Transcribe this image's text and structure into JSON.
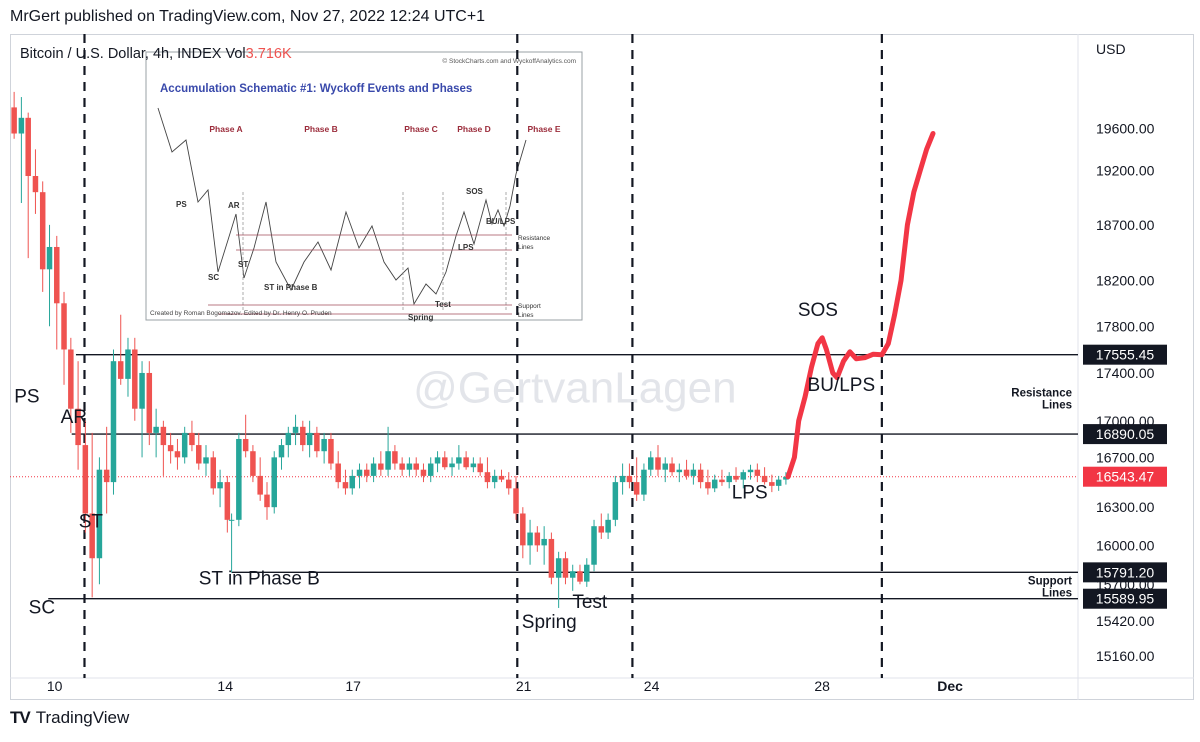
{
  "header": {
    "publish_line": "MrGert published on TradingView.com, Nov 27, 2022 12:24 UTC+1"
  },
  "footer": {
    "brand": "TradingView"
  },
  "colors": {
    "up": "#26a69a",
    "down": "#ef5350",
    "path": "#f23645",
    "axis_text": "#131722",
    "last_price_bg": "#f23645"
  },
  "chart_data": {
    "type": "candlestick",
    "symbol_line": "Bitcoin / U.S. Dollar, 4h, INDEX",
    "volume_label": "Vol",
    "volume_value": "3.716K",
    "currency": "USD",
    "watermark": "@GertvanLagen",
    "y_scale": "log",
    "ylim": [
      15000,
      20500
    ],
    "xlim": [
      9.0,
      34.0
    ],
    "x_tick_labels": [
      {
        "x": 10,
        "label": "10"
      },
      {
        "x": 14,
        "label": "14"
      },
      {
        "x": 17,
        "label": "17"
      },
      {
        "x": 21,
        "label": "21"
      },
      {
        "x": 24,
        "label": "24"
      },
      {
        "x": 28,
        "label": "28"
      },
      {
        "x": 31,
        "label": "Dec"
      }
    ],
    "y_ticks": [
      15160,
      15420,
      15700,
      16000,
      16300,
      16700,
      17000,
      17400,
      17800,
      18200,
      18700,
      19200,
      19600
    ],
    "y_tick_labels": [
      "15160.00",
      "15420.00",
      "15700.00",
      "16000.00",
      "16300.00",
      "16700.00",
      "17000.00",
      "17400.00",
      "17800.00",
      "18200.00",
      "18700.00",
      "19200.00",
      "19600.00"
    ],
    "price_lines": [
      {
        "value": 17555.45,
        "label": "17555.45",
        "x_start": 10.5
      },
      {
        "value": 16890.05,
        "label": "16890.05",
        "x_start": 10.4
      },
      {
        "value": 15791.2,
        "label": "15791.20",
        "x_start": 14.15
      },
      {
        "value": 15589.95,
        "label": "15589.95",
        "x_start": 9.85
      }
    ],
    "last_price": {
      "value": 16543.47,
      "label": "16543.47"
    },
    "phase_dividers_x": [
      10.7,
      20.85,
      23.55,
      29.4
    ],
    "candles": [
      {
        "x": 9.05,
        "o": 19800,
        "h": 19950,
        "l": 19500,
        "c": 19550
      },
      {
        "x": 9.22,
        "o": 19550,
        "h": 19900,
        "l": 18900,
        "c": 19700
      },
      {
        "x": 9.38,
        "o": 19700,
        "h": 19750,
        "l": 18400,
        "c": 19150
      },
      {
        "x": 9.55,
        "o": 19150,
        "h": 19400,
        "l": 18800,
        "c": 19000
      },
      {
        "x": 9.72,
        "o": 19000,
        "h": 19100,
        "l": 18100,
        "c": 18300
      },
      {
        "x": 9.88,
        "o": 18300,
        "h": 18700,
        "l": 17800,
        "c": 18500
      },
      {
        "x": 10.05,
        "o": 18500,
        "h": 18600,
        "l": 17600,
        "c": 18000
      },
      {
        "x": 10.22,
        "o": 18000,
        "h": 18100,
        "l": 17300,
        "c": 17600
      },
      {
        "x": 10.38,
        "o": 17600,
        "h": 17700,
        "l": 16900,
        "c": 17100
      },
      {
        "x": 10.55,
        "o": 17100,
        "h": 17500,
        "l": 16600,
        "c": 16800
      },
      {
        "x": 10.72,
        "o": 16800,
        "h": 17000,
        "l": 16100,
        "c": 16250
      },
      {
        "x": 10.88,
        "o": 16250,
        "h": 16900,
        "l": 15600,
        "c": 15900
      },
      {
        "x": 11.05,
        "o": 15900,
        "h": 16700,
        "l": 15700,
        "c": 16600
      },
      {
        "x": 11.22,
        "o": 16600,
        "h": 16950,
        "l": 16250,
        "c": 16500
      },
      {
        "x": 11.38,
        "o": 16500,
        "h": 17600,
        "l": 16400,
        "c": 17500
      },
      {
        "x": 11.55,
        "o": 17500,
        "h": 17900,
        "l": 17300,
        "c": 17350
      },
      {
        "x": 11.72,
        "o": 17350,
        "h": 17700,
        "l": 17200,
        "c": 17600
      },
      {
        "x": 11.88,
        "o": 17600,
        "h": 17700,
        "l": 17000,
        "c": 17100
      },
      {
        "x": 12.05,
        "o": 17100,
        "h": 17500,
        "l": 16700,
        "c": 17400
      },
      {
        "x": 12.22,
        "o": 17400,
        "h": 17500,
        "l": 16800,
        "c": 16900
      },
      {
        "x": 12.38,
        "o": 16900,
        "h": 17100,
        "l": 16700,
        "c": 16950
      },
      {
        "x": 12.55,
        "o": 16950,
        "h": 17000,
        "l": 16550,
        "c": 16800
      },
      {
        "x": 12.72,
        "o": 16800,
        "h": 16900,
        "l": 16650,
        "c": 16750
      },
      {
        "x": 12.88,
        "o": 16750,
        "h": 16850,
        "l": 16600,
        "c": 16700
      },
      {
        "x": 13.05,
        "o": 16700,
        "h": 16950,
        "l": 16650,
        "c": 16900
      },
      {
        "x": 13.22,
        "o": 16900,
        "h": 17000,
        "l": 16750,
        "c": 16800
      },
      {
        "x": 13.38,
        "o": 16800,
        "h": 16900,
        "l": 16600,
        "c": 16650
      },
      {
        "x": 13.55,
        "o": 16650,
        "h": 16800,
        "l": 16550,
        "c": 16700
      },
      {
        "x": 13.72,
        "o": 16700,
        "h": 16750,
        "l": 16400,
        "c": 16450
      },
      {
        "x": 13.88,
        "o": 16450,
        "h": 16600,
        "l": 16300,
        "c": 16500
      },
      {
        "x": 14.05,
        "o": 16500,
        "h": 16550,
        "l": 16100,
        "c": 16200
      },
      {
        "x": 14.15,
        "o": 16200,
        "h": 16250,
        "l": 15790,
        "c": 16200
      },
      {
        "x": 14.32,
        "o": 16200,
        "h": 16900,
        "l": 16150,
        "c": 16850
      },
      {
        "x": 14.48,
        "o": 16850,
        "h": 17050,
        "l": 16700,
        "c": 16750
      },
      {
        "x": 14.65,
        "o": 16750,
        "h": 16800,
        "l": 16500,
        "c": 16550
      },
      {
        "x": 14.82,
        "o": 16550,
        "h": 16700,
        "l": 16350,
        "c": 16400
      },
      {
        "x": 14.98,
        "o": 16400,
        "h": 16500,
        "l": 16200,
        "c": 16300
      },
      {
        "x": 15.15,
        "o": 16300,
        "h": 16750,
        "l": 16250,
        "c": 16700
      },
      {
        "x": 15.32,
        "o": 16700,
        "h": 16850,
        "l": 16600,
        "c": 16800
      },
      {
        "x": 15.48,
        "o": 16800,
        "h": 16950,
        "l": 16700,
        "c": 16900
      },
      {
        "x": 15.65,
        "o": 16900,
        "h": 17050,
        "l": 16800,
        "c": 16950
      },
      {
        "x": 15.82,
        "o": 16950,
        "h": 17000,
        "l": 16750,
        "c": 16800
      },
      {
        "x": 15.98,
        "o": 16800,
        "h": 17000,
        "l": 16700,
        "c": 16900
      },
      {
        "x": 16.15,
        "o": 16900,
        "h": 16950,
        "l": 16700,
        "c": 16750
      },
      {
        "x": 16.32,
        "o": 16750,
        "h": 16900,
        "l": 16650,
        "c": 16850
      },
      {
        "x": 16.48,
        "o": 16850,
        "h": 16900,
        "l": 16600,
        "c": 16650
      },
      {
        "x": 16.65,
        "o": 16650,
        "h": 16750,
        "l": 16450,
        "c": 16500
      },
      {
        "x": 16.82,
        "o": 16500,
        "h": 16600,
        "l": 16400,
        "c": 16450
      },
      {
        "x": 16.98,
        "o": 16450,
        "h": 16600,
        "l": 16400,
        "c": 16550
      },
      {
        "x": 17.15,
        "o": 16550,
        "h": 16650,
        "l": 16450,
        "c": 16600
      },
      {
        "x": 17.32,
        "o": 16600,
        "h": 16650,
        "l": 16500,
        "c": 16550
      },
      {
        "x": 17.48,
        "o": 16550,
        "h": 16700,
        "l": 16500,
        "c": 16650
      },
      {
        "x": 17.65,
        "o": 16650,
        "h": 16750,
        "l": 16550,
        "c": 16600
      },
      {
        "x": 17.82,
        "o": 16600,
        "h": 16950,
        "l": 16550,
        "c": 16750
      },
      {
        "x": 17.98,
        "o": 16750,
        "h": 16800,
        "l": 16600,
        "c": 16650
      },
      {
        "x": 18.15,
        "o": 16650,
        "h": 16700,
        "l": 16550,
        "c": 16600
      },
      {
        "x": 18.32,
        "o": 16600,
        "h": 16700,
        "l": 16550,
        "c": 16650
      },
      {
        "x": 18.48,
        "o": 16650,
        "h": 16700,
        "l": 16550,
        "c": 16600
      },
      {
        "x": 18.65,
        "o": 16600,
        "h": 16650,
        "l": 16500,
        "c": 16550
      },
      {
        "x": 18.82,
        "o": 16550,
        "h": 16700,
        "l": 16500,
        "c": 16650
      },
      {
        "x": 18.98,
        "o": 16650,
        "h": 16750,
        "l": 16580,
        "c": 16700
      },
      {
        "x": 19.15,
        "o": 16700,
        "h": 16750,
        "l": 16600,
        "c": 16620
      },
      {
        "x": 19.32,
        "o": 16620,
        "h": 16700,
        "l": 16550,
        "c": 16650
      },
      {
        "x": 19.48,
        "o": 16650,
        "h": 16800,
        "l": 16600,
        "c": 16700
      },
      {
        "x": 19.65,
        "o": 16700,
        "h": 16750,
        "l": 16600,
        "c": 16620
      },
      {
        "x": 19.82,
        "o": 16620,
        "h": 16700,
        "l": 16580,
        "c": 16650
      },
      {
        "x": 19.98,
        "o": 16650,
        "h": 16700,
        "l": 16550,
        "c": 16580
      },
      {
        "x": 20.15,
        "o": 16580,
        "h": 16700,
        "l": 16450,
        "c": 16500
      },
      {
        "x": 20.32,
        "o": 16500,
        "h": 16600,
        "l": 16450,
        "c": 16550
      },
      {
        "x": 20.48,
        "o": 16550,
        "h": 16600,
        "l": 16500,
        "c": 16520
      },
      {
        "x": 20.65,
        "o": 16520,
        "h": 16580,
        "l": 16400,
        "c": 16450
      },
      {
        "x": 20.82,
        "o": 16450,
        "h": 16550,
        "l": 16200,
        "c": 16250
      },
      {
        "x": 20.98,
        "o": 16250,
        "h": 16300,
        "l": 15900,
        "c": 16000
      },
      {
        "x": 21.15,
        "o": 16000,
        "h": 16200,
        "l": 15850,
        "c": 16100
      },
      {
        "x": 21.32,
        "o": 16100,
        "h": 16150,
        "l": 15950,
        "c": 16000
      },
      {
        "x": 21.48,
        "o": 16000,
        "h": 16150,
        "l": 15850,
        "c": 16050
      },
      {
        "x": 21.65,
        "o": 16050,
        "h": 16100,
        "l": 15700,
        "c": 15750
      },
      {
        "x": 21.82,
        "o": 15750,
        "h": 15950,
        "l": 15520,
        "c": 15900
      },
      {
        "x": 21.98,
        "o": 15900,
        "h": 15950,
        "l": 15700,
        "c": 15750
      },
      {
        "x": 22.15,
        "o": 15750,
        "h": 15850,
        "l": 15650,
        "c": 15800
      },
      {
        "x": 22.32,
        "o": 15800,
        "h": 15850,
        "l": 15700,
        "c": 15720
      },
      {
        "x": 22.48,
        "o": 15720,
        "h": 15900,
        "l": 15680,
        "c": 15850
      },
      {
        "x": 22.65,
        "o": 15850,
        "h": 16200,
        "l": 15800,
        "c": 16150
      },
      {
        "x": 22.82,
        "o": 16150,
        "h": 16250,
        "l": 16050,
        "c": 16100
      },
      {
        "x": 22.98,
        "o": 16100,
        "h": 16250,
        "l": 16050,
        "c": 16200
      },
      {
        "x": 23.15,
        "o": 16200,
        "h": 16550,
        "l": 16150,
        "c": 16500
      },
      {
        "x": 23.32,
        "o": 16500,
        "h": 16650,
        "l": 16400,
        "c": 16550
      },
      {
        "x": 23.48,
        "o": 16550,
        "h": 16650,
        "l": 16450,
        "c": 16500
      },
      {
        "x": 23.65,
        "o": 16500,
        "h": 16700,
        "l": 16350,
        "c": 16400
      },
      {
        "x": 23.82,
        "o": 16400,
        "h": 16650,
        "l": 16350,
        "c": 16600
      },
      {
        "x": 23.98,
        "o": 16600,
        "h": 16750,
        "l": 16550,
        "c": 16700
      },
      {
        "x": 24.15,
        "o": 16700,
        "h": 16800,
        "l": 16550,
        "c": 16600
      },
      {
        "x": 24.32,
        "o": 16600,
        "h": 16700,
        "l": 16500,
        "c": 16650
      },
      {
        "x": 24.48,
        "o": 16650,
        "h": 16700,
        "l": 16550,
        "c": 16580
      },
      {
        "x": 24.65,
        "o": 16580,
        "h": 16650,
        "l": 16500,
        "c": 16600
      },
      {
        "x": 24.82,
        "o": 16600,
        "h": 16680,
        "l": 16520,
        "c": 16550
      },
      {
        "x": 24.98,
        "o": 16550,
        "h": 16650,
        "l": 16480,
        "c": 16600
      },
      {
        "x": 25.15,
        "o": 16600,
        "h": 16650,
        "l": 16450,
        "c": 16500
      },
      {
        "x": 25.32,
        "o": 16500,
        "h": 16600,
        "l": 16400,
        "c": 16450
      },
      {
        "x": 25.48,
        "o": 16450,
        "h": 16560,
        "l": 16420,
        "c": 16520
      },
      {
        "x": 25.65,
        "o": 16520,
        "h": 16600,
        "l": 16470,
        "c": 16500
      },
      {
        "x": 25.82,
        "o": 16500,
        "h": 16580,
        "l": 16450,
        "c": 16550
      },
      {
        "x": 25.98,
        "o": 16550,
        "h": 16620,
        "l": 16500,
        "c": 16520
      },
      {
        "x": 26.15,
        "o": 16520,
        "h": 16600,
        "l": 16450,
        "c": 16580
      },
      {
        "x": 26.32,
        "o": 16580,
        "h": 16640,
        "l": 16520,
        "c": 16600
      },
      {
        "x": 26.48,
        "o": 16600,
        "h": 16650,
        "l": 16500,
        "c": 16550
      },
      {
        "x": 26.65,
        "o": 16550,
        "h": 16620,
        "l": 16480,
        "c": 16500
      },
      {
        "x": 26.82,
        "o": 16500,
        "h": 16560,
        "l": 16420,
        "c": 16470
      },
      {
        "x": 26.98,
        "o": 16470,
        "h": 16550,
        "l": 16430,
        "c": 16520
      },
      {
        "x": 27.15,
        "o": 16520,
        "h": 16580,
        "l": 16480,
        "c": 16543
      }
    ],
    "projection": [
      {
        "x": 27.2,
        "y": 16543
      },
      {
        "x": 27.35,
        "y": 16700
      },
      {
        "x": 27.45,
        "y": 17000
      },
      {
        "x": 27.6,
        "y": 17200
      },
      {
        "x": 27.75,
        "y": 17450
      },
      {
        "x": 27.9,
        "y": 17650
      },
      {
        "x": 28.0,
        "y": 17700
      },
      {
        "x": 28.1,
        "y": 17600
      },
      {
        "x": 28.25,
        "y": 17400
      },
      {
        "x": 28.35,
        "y": 17360
      },
      {
        "x": 28.5,
        "y": 17500
      },
      {
        "x": 28.65,
        "y": 17580
      },
      {
        "x": 28.8,
        "y": 17520
      },
      {
        "x": 29.0,
        "y": 17530
      },
      {
        "x": 29.2,
        "y": 17560
      },
      {
        "x": 29.4,
        "y": 17555
      },
      {
        "x": 29.55,
        "y": 17650
      },
      {
        "x": 29.7,
        "y": 17900
      },
      {
        "x": 29.85,
        "y": 18200
      },
      {
        "x": 30.0,
        "y": 18700
      },
      {
        "x": 30.15,
        "y": 19000
      },
      {
        "x": 30.3,
        "y": 19200
      },
      {
        "x": 30.45,
        "y": 19400
      },
      {
        "x": 30.6,
        "y": 19550
      }
    ],
    "annotations": [
      {
        "text": "PS",
        "x": 9.35,
        "y": 17150
      },
      {
        "text": "AR",
        "x": 10.45,
        "y": 16980
      },
      {
        "text": "ST",
        "x": 10.85,
        "y": 16140
      },
      {
        "text": "SC",
        "x": 9.7,
        "y": 15480
      },
      {
        "text": "ST in Phase B",
        "x": 14.8,
        "y": 15700
      },
      {
        "text": "Spring",
        "x": 21.6,
        "y": 15370
      },
      {
        "text": "Test",
        "x": 22.55,
        "y": 15520
      },
      {
        "text": "LPS",
        "x": 26.3,
        "y": 16370
      },
      {
        "text": "SOS",
        "x": 27.9,
        "y": 17890
      },
      {
        "text": "BU/LPS",
        "x": 28.45,
        "y": 17250
      }
    ],
    "side_notes": [
      {
        "lines": [
          "Resistance",
          "Lines"
        ],
        "y": 17200
      },
      {
        "lines": [
          "Support",
          "Lines"
        ],
        "y": 15700
      }
    ],
    "inset": {
      "copyright": "© StockCharts.com and WyckoffAnalytics.com",
      "title": "Accumulation Schematic #1: Wyckoff Events and Phases",
      "phases": [
        "Phase A",
        "Phase B",
        "Phase C",
        "Phase D",
        "Phase E"
      ],
      "labels": [
        "PS",
        "AR",
        "ST",
        "SC",
        "ST in Phase B",
        "Spring",
        "Test",
        "SOS",
        "BU/LPS",
        "LPS"
      ],
      "side_labels": [
        "Resistance",
        "Lines",
        "Support",
        "Lines"
      ],
      "credit": "Created by Roman Bogomazov. Edited by Dr. Henry O. Pruden"
    }
  }
}
